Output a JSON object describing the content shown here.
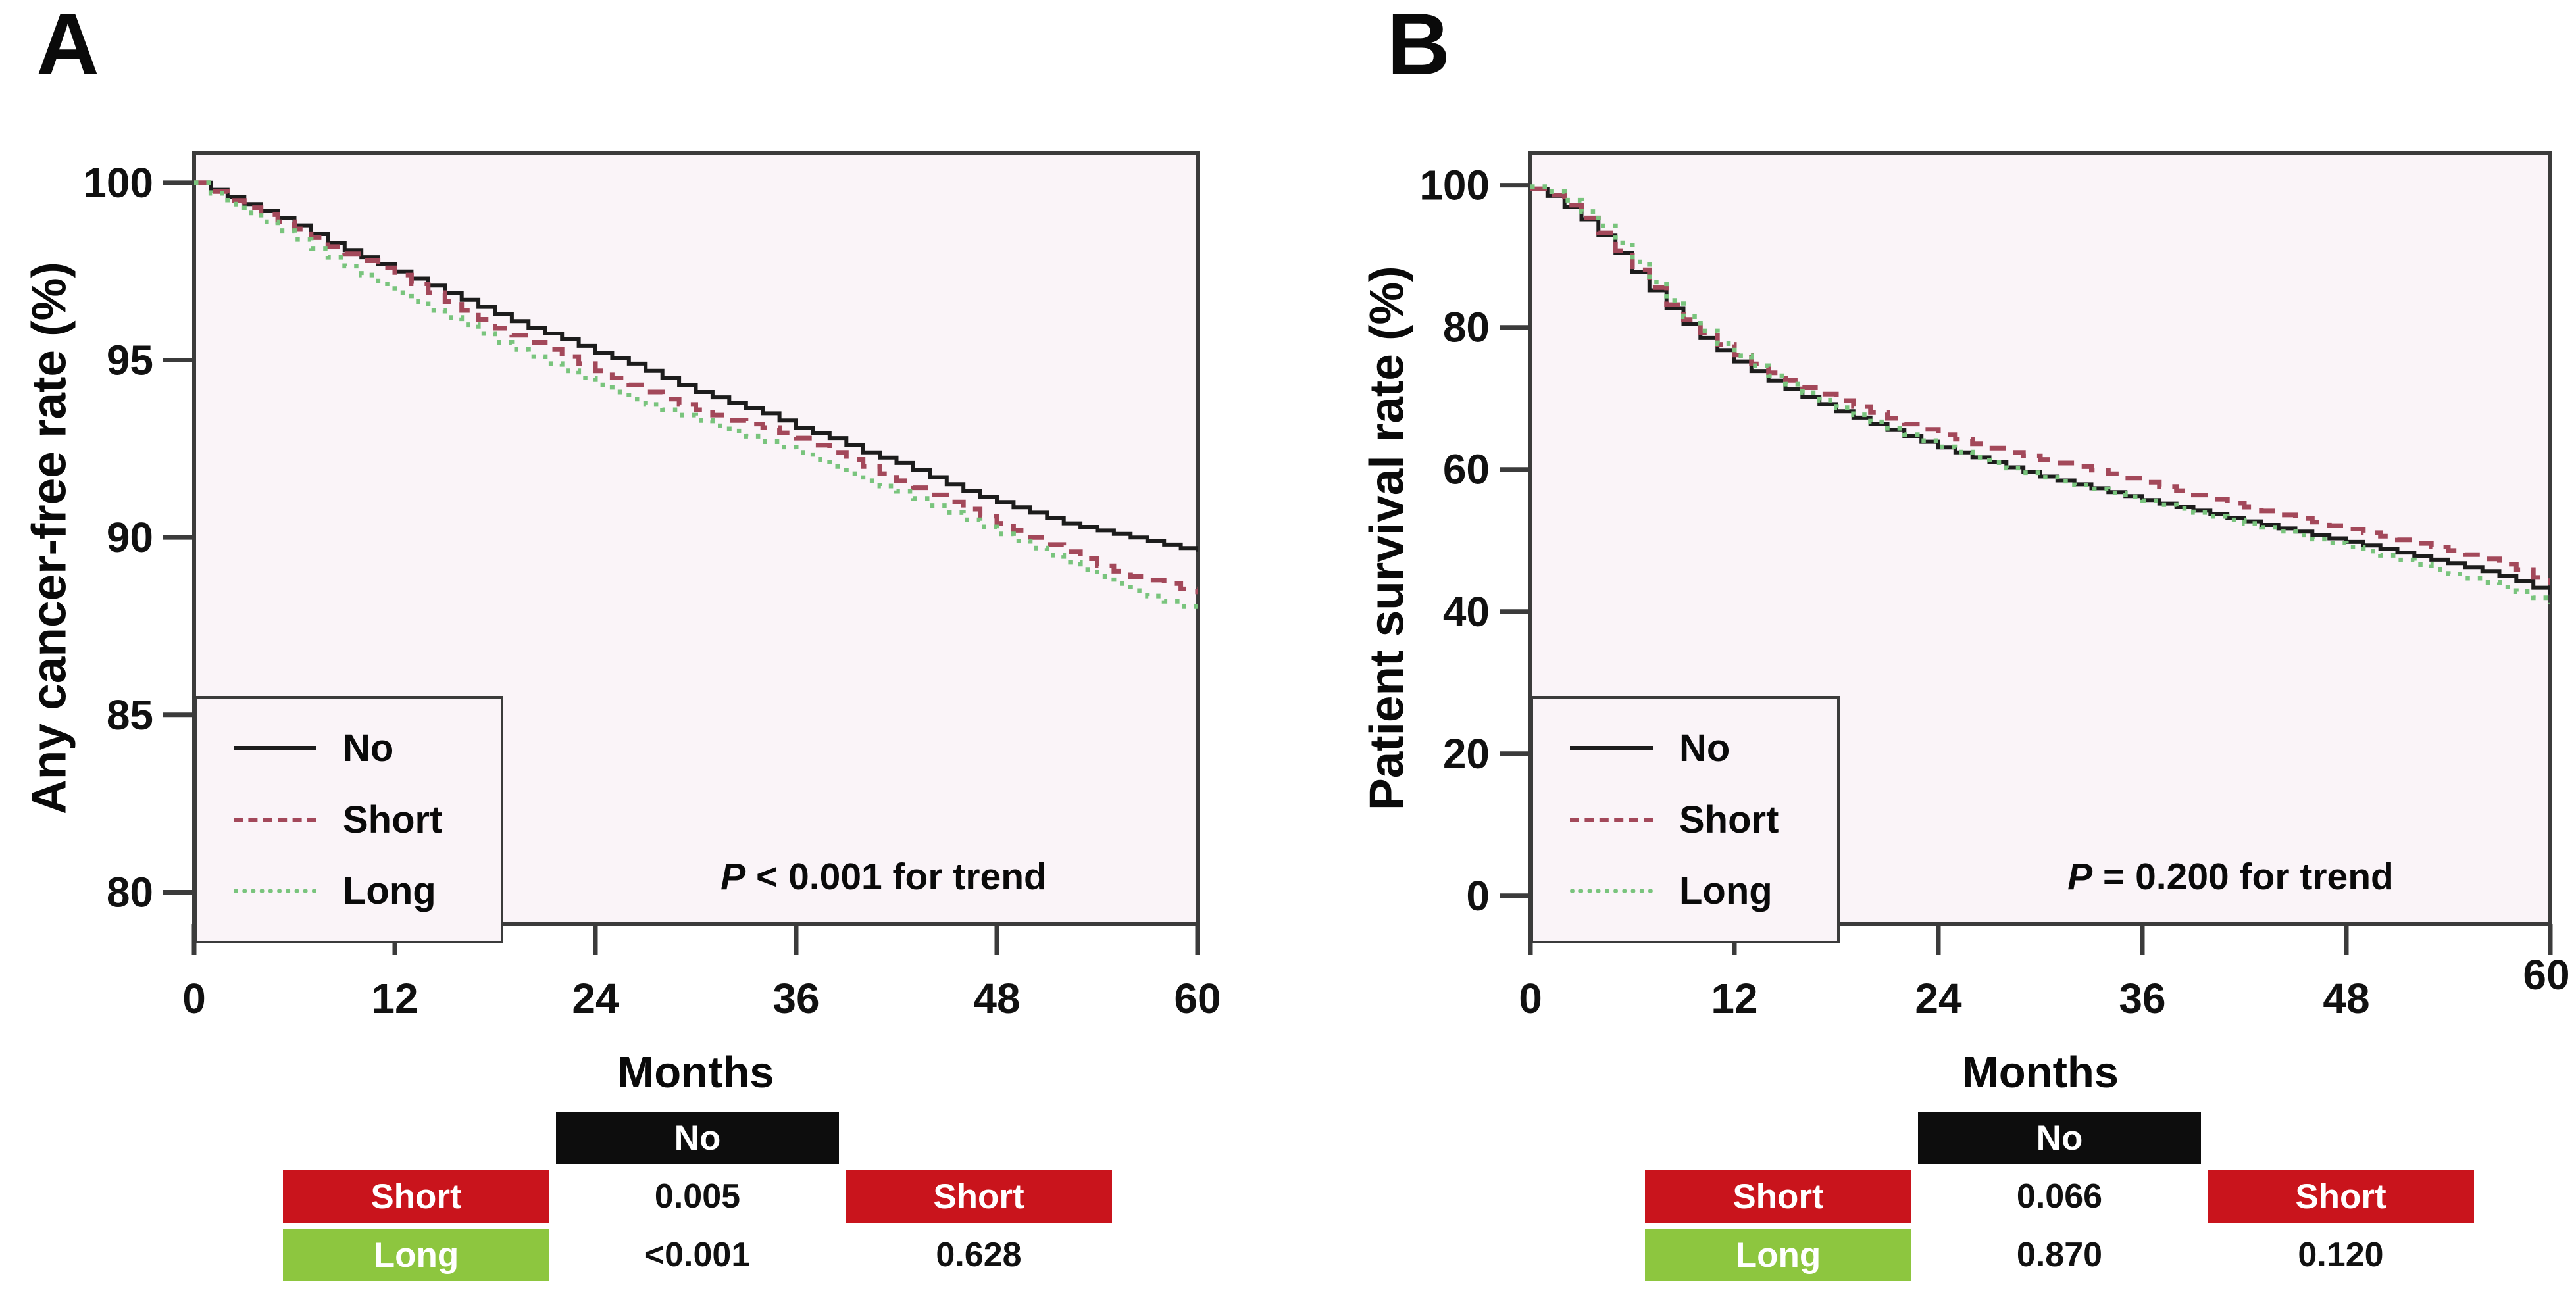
{
  "colors": {
    "frame": "#3b3b3b",
    "plot_bg": "#faf4f8",
    "tick_label": "#111111",
    "table_no_bg": "#0d0d0d",
    "table_short_bg": "#c9141c",
    "table_long_bg": "#8dc63f",
    "table_text": "#ffffff"
  },
  "panels": [
    {
      "label": "A",
      "p_italic": "P",
      "p_rest": " < 0.001 for trend",
      "table": {
        "header": "No",
        "rows": [
          {
            "label": "Short",
            "vs_no": "0.005",
            "right_header": "Short"
          },
          {
            "label": "Long",
            "vs_no": "<0.001",
            "vs_short": "0.628"
          }
        ]
      }
    },
    {
      "label": "B",
      "p_italic": "P",
      "p_rest": " = 0.200 for trend",
      "table": {
        "header": "No",
        "rows": [
          {
            "label": "Short",
            "vs_no": "0.066",
            "right_header": "Short"
          },
          {
            "label": "Long",
            "vs_no": "0.870",
            "vs_short": "0.120"
          }
        ]
      }
    }
  ],
  "chart_data": [
    {
      "type": "line",
      "subtype": "kaplan-meier-step",
      "title": "A",
      "ylabel": "Any cancer-free rate (%)",
      "xlabel": "Months",
      "xlim": [
        0,
        60
      ],
      "ylim": [
        79.1,
        100.85
      ],
      "x_ticks": [
        0,
        12,
        24,
        36,
        48,
        60
      ],
      "y_ticks": [
        100,
        95,
        90,
        85,
        80
      ],
      "annotation": "P < 0.001 for trend",
      "legend_position": "bottom-left",
      "grid": false,
      "series": [
        {
          "name": "No",
          "style": "solid",
          "color": "#1c1c1c",
          "width": 6,
          "points": [
            [
              0,
              100
            ],
            [
              2,
              99.6
            ],
            [
              4,
              99.2
            ],
            [
              6,
              98.8
            ],
            [
              8,
              98.3
            ],
            [
              10,
              97.9
            ],
            [
              12,
              97.5
            ],
            [
              14,
              97.1
            ],
            [
              16,
              96.7
            ],
            [
              18,
              96.3
            ],
            [
              20,
              95.9
            ],
            [
              22,
              95.6
            ],
            [
              24,
              95.2
            ],
            [
              26,
              94.9
            ],
            [
              28,
              94.5
            ],
            [
              30,
              94.1
            ],
            [
              32,
              93.8
            ],
            [
              34,
              93.5
            ],
            [
              36,
              93.1
            ],
            [
              38,
              92.8
            ],
            [
              40,
              92.4
            ],
            [
              42,
              92.1
            ],
            [
              44,
              91.7
            ],
            [
              46,
              91.3
            ],
            [
              48,
              91.0
            ],
            [
              50,
              90.7
            ],
            [
              52,
              90.4
            ],
            [
              54,
              90.2
            ],
            [
              56,
              90.0
            ],
            [
              58,
              89.8
            ],
            [
              60,
              89.6
            ]
          ]
        },
        {
          "name": "Short",
          "style": "dashed",
          "color": "#a3485a",
          "width": 7,
          "points": [
            [
              0,
              100
            ],
            [
              2,
              99.5
            ],
            [
              4,
              99.1
            ],
            [
              6,
              98.7
            ],
            [
              8,
              98.2
            ],
            [
              10,
              97.8
            ],
            [
              12,
              97.4
            ],
            [
              14,
              96.9
            ],
            [
              16,
              96.4
            ],
            [
              18,
              95.9
            ],
            [
              20,
              95.5
            ],
            [
              22,
              95.1
            ],
            [
              24,
              94.7
            ],
            [
              26,
              94.3
            ],
            [
              28,
              93.9
            ],
            [
              30,
              93.6
            ],
            [
              32,
              93.3
            ],
            [
              34,
              93.1
            ],
            [
              36,
              92.8
            ],
            [
              38,
              92.4
            ],
            [
              40,
              92.0
            ],
            [
              42,
              91.6
            ],
            [
              44,
              91.2
            ],
            [
              46,
              90.8
            ],
            [
              48,
              90.4
            ],
            [
              50,
              90.0
            ],
            [
              52,
              89.6
            ],
            [
              54,
              89.2
            ],
            [
              56,
              88.9
            ],
            [
              58,
              88.7
            ],
            [
              60,
              88.4
            ]
          ]
        },
        {
          "name": "Long",
          "style": "dotted",
          "color": "#79c47d",
          "width": 7,
          "points": [
            [
              0,
              100
            ],
            [
              2,
              99.4
            ],
            [
              4,
              98.9
            ],
            [
              6,
              98.4
            ],
            [
              8,
              97.9
            ],
            [
              10,
              97.4
            ],
            [
              12,
              96.9
            ],
            [
              14,
              96.4
            ],
            [
              16,
              96.0
            ],
            [
              18,
              95.5
            ],
            [
              20,
              95.1
            ],
            [
              22,
              94.7
            ],
            [
              24,
              94.3
            ],
            [
              26,
              93.9
            ],
            [
              28,
              93.6
            ],
            [
              30,
              93.3
            ],
            [
              32,
              93.0
            ],
            [
              34,
              92.7
            ],
            [
              36,
              92.4
            ],
            [
              38,
              92.0
            ],
            [
              40,
              91.6
            ],
            [
              42,
              91.3
            ],
            [
              44,
              90.9
            ],
            [
              46,
              90.5
            ],
            [
              48,
              90.1
            ],
            [
              50,
              89.7
            ],
            [
              52,
              89.3
            ],
            [
              54,
              88.9
            ],
            [
              56,
              88.5
            ],
            [
              58,
              88.2
            ],
            [
              60,
              87.9
            ]
          ]
        }
      ]
    },
    {
      "type": "line",
      "subtype": "kaplan-meier-step",
      "title": "B",
      "ylabel": "Patient survival rate (%)",
      "xlabel": "Months",
      "xlim": [
        0,
        60
      ],
      "ylim": [
        -4,
        104.6
      ],
      "x_ticks": [
        0,
        12,
        24,
        36,
        48,
        60
      ],
      "y_ticks": [
        100,
        80,
        60,
        40,
        20,
        0
      ],
      "annotation": "P = 0.200 for trend",
      "legend_position": "bottom-left",
      "grid": false,
      "series": [
        {
          "name": "No",
          "style": "solid",
          "color": "#1c1c1c",
          "width": 6,
          "points": [
            [
              0,
              99.5
            ],
            [
              1,
              98.5
            ],
            [
              2,
              97.0
            ],
            [
              3,
              95.2
            ],
            [
              4,
              93.0
            ],
            [
              5,
              90.5
            ],
            [
              6,
              87.8
            ],
            [
              7,
              85.2
            ],
            [
              8,
              82.7
            ],
            [
              9,
              80.5
            ],
            [
              10,
              78.5
            ],
            [
              11,
              76.8
            ],
            [
              12,
              75.2
            ],
            [
              14,
              72.5
            ],
            [
              16,
              70.2
            ],
            [
              18,
              68.2
            ],
            [
              20,
              66.4
            ],
            [
              22,
              64.7
            ],
            [
              24,
              63.1
            ],
            [
              26,
              61.7
            ],
            [
              28,
              60.3
            ],
            [
              30,
              59.0
            ],
            [
              32,
              57.9
            ],
            [
              34,
              56.8
            ],
            [
              36,
              55.7
            ],
            [
              38,
              54.7
            ],
            [
              40,
              53.7
            ],
            [
              42,
              52.7
            ],
            [
              44,
              51.7
            ],
            [
              46,
              50.8
            ],
            [
              48,
              49.8
            ],
            [
              50,
              48.8
            ],
            [
              52,
              47.8
            ],
            [
              54,
              46.8
            ],
            [
              56,
              45.7
            ],
            [
              58,
              44.3
            ],
            [
              60,
              42.4
            ]
          ]
        },
        {
          "name": "Short",
          "style": "dashed",
          "color": "#a3485a",
          "width": 7,
          "points": [
            [
              0,
              99.5
            ],
            [
              1,
              98.6
            ],
            [
              2,
              97.2
            ],
            [
              3,
              95.4
            ],
            [
              4,
              93.3
            ],
            [
              5,
              90.8
            ],
            [
              6,
              88.1
            ],
            [
              7,
              85.6
            ],
            [
              8,
              83.2
            ],
            [
              9,
              81.1
            ],
            [
              10,
              79.2
            ],
            [
              11,
              77.6
            ],
            [
              12,
              76.1
            ],
            [
              14,
              73.6
            ],
            [
              16,
              71.5
            ],
            [
              18,
              69.7
            ],
            [
              20,
              68.0
            ],
            [
              22,
              66.4
            ],
            [
              24,
              64.9
            ],
            [
              26,
              63.6
            ],
            [
              28,
              62.4
            ],
            [
              30,
              61.4
            ],
            [
              32,
              60.4
            ],
            [
              34,
              59.4
            ],
            [
              36,
              58.2
            ],
            [
              38,
              57.0
            ],
            [
              40,
              55.8
            ],
            [
              42,
              54.7
            ],
            [
              44,
              53.6
            ],
            [
              46,
              52.6
            ],
            [
              48,
              51.6
            ],
            [
              50,
              50.6
            ],
            [
              52,
              49.6
            ],
            [
              54,
              48.6
            ],
            [
              56,
              47.4
            ],
            [
              58,
              45.9
            ],
            [
              60,
              43.7
            ]
          ]
        },
        {
          "name": "Long",
          "style": "dotted",
          "color": "#79c47d",
          "width": 7,
          "points": [
            [
              0,
              99.8
            ],
            [
              1,
              99.1
            ],
            [
              2,
              97.9
            ],
            [
              3,
              96.3
            ],
            [
              4,
              94.3
            ],
            [
              5,
              91.9
            ],
            [
              6,
              89.2
            ],
            [
              7,
              86.4
            ],
            [
              8,
              83.8
            ],
            [
              9,
              81.5
            ],
            [
              10,
              79.5
            ],
            [
              11,
              77.7
            ],
            [
              12,
              76.0
            ],
            [
              14,
              73.2
            ],
            [
              16,
              70.8
            ],
            [
              18,
              68.7
            ],
            [
              20,
              66.7
            ],
            [
              22,
              64.9
            ],
            [
              24,
              63.2
            ],
            [
              26,
              61.7
            ],
            [
              28,
              60.2
            ],
            [
              30,
              58.9
            ],
            [
              32,
              57.8
            ],
            [
              34,
              56.7
            ],
            [
              36,
              55.6
            ],
            [
              38,
              54.5
            ],
            [
              40,
              53.4
            ],
            [
              42,
              52.4
            ],
            [
              44,
              51.3
            ],
            [
              46,
              50.2
            ],
            [
              48,
              49.1
            ],
            [
              50,
              47.9
            ],
            [
              52,
              46.6
            ],
            [
              54,
              45.3
            ],
            [
              56,
              44.1
            ],
            [
              58,
              42.8
            ],
            [
              60,
              41.1
            ]
          ]
        }
      ]
    }
  ]
}
